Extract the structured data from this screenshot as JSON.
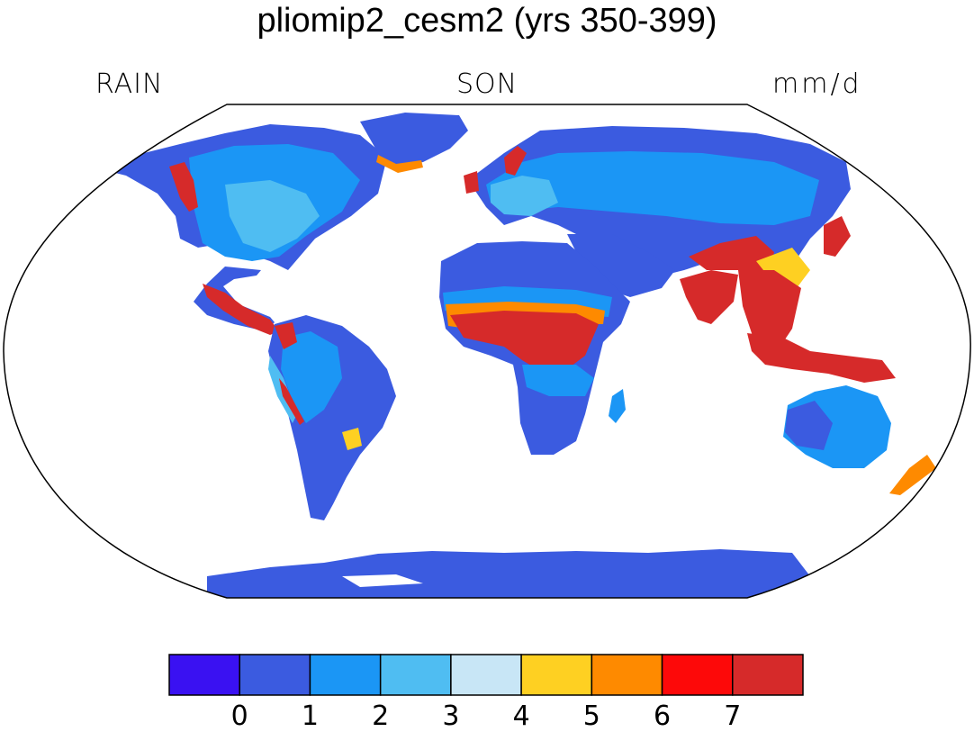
{
  "title": "pliomip2_cesm2 (yrs 350-399)",
  "variable": "RAIN",
  "season": "SON",
  "units": "mm/d",
  "colorbar": {
    "colors": [
      "#3a11f2",
      "#3b5be0",
      "#1b96f5",
      "#4fbdf2",
      "#c8e6f6",
      "#fed022",
      "#fe8a00",
      "#fd0909",
      "#d62a2a"
    ],
    "tick_labels": [
      "0",
      "1",
      "2",
      "3",
      "4",
      "5",
      "6",
      "7"
    ]
  }
}
